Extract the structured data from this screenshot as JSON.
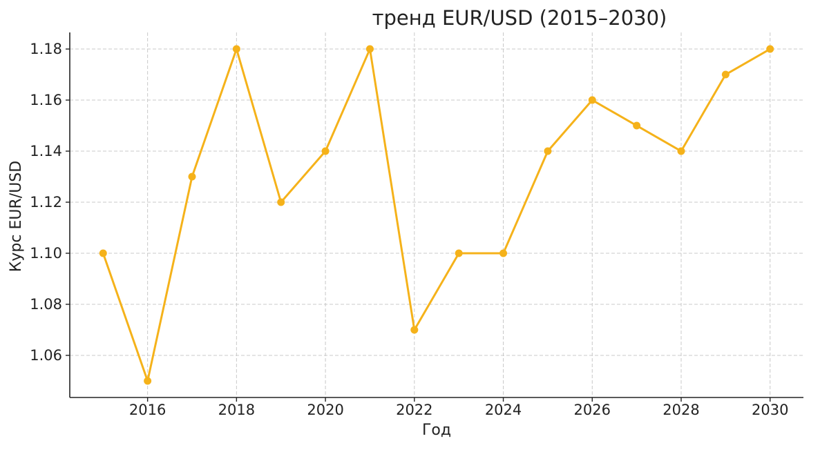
{
  "chart_data": {
    "type": "line",
    "title": "тренд EUR/USD (2015–2030)",
    "xlabel": "Год",
    "ylabel": "Курс EUR/USD",
    "x": [
      2015,
      2016,
      2017,
      2018,
      2019,
      2020,
      2021,
      2022,
      2023,
      2024,
      2025,
      2026,
      2027,
      2028,
      2029,
      2030
    ],
    "series": [
      {
        "values": [
          1.1,
          1.05,
          1.13,
          1.18,
          1.12,
          1.14,
          1.18,
          1.07,
          1.1,
          1.1,
          1.14,
          1.16,
          1.15,
          1.14,
          1.17,
          1.18
        ],
        "color": "#f5b21a"
      }
    ],
    "xlim": [
      2014.25,
      2030.75
    ],
    "ylim": [
      1.0435,
      1.1865
    ],
    "xticks": [
      2016,
      2018,
      2020,
      2022,
      2024,
      2026,
      2028,
      2030
    ],
    "xtick_labels": [
      "2016",
      "2018",
      "2020",
      "2022",
      "2024",
      "2026",
      "2028",
      "2030"
    ],
    "yticks": [
      1.06,
      1.08,
      1.1,
      1.12,
      1.14,
      1.16,
      1.18
    ],
    "ytick_labels": [
      "1.06",
      "1.08",
      "1.10",
      "1.12",
      "1.14",
      "1.16",
      "1.18"
    ],
    "grid": true,
    "marker": "circle"
  }
}
